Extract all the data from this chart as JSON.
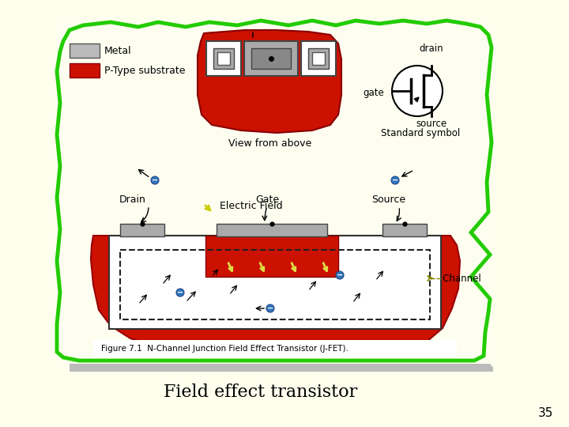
{
  "title": "Field effect transistor",
  "slide_number": "35",
  "bg_color": "#FFFFEE",
  "panel_bg": "#FFFEF0",
  "green_color": "#22CC00",
  "red_color": "#CC1100",
  "gray_color": "#AAAAAA",
  "dark_gray": "#555555",
  "white": "#FFFFFF",
  "figure_caption": "Figure 7.1  N-Channel Junction Field Effect Transistor (J-FET).",
  "label_drain": "Drain",
  "label_gate": "Gate",
  "label_source": "Source",
  "label_channel": "- Channel",
  "label_efield": "Electric Field",
  "label_metal": "Metal",
  "label_ptype": "P-Type substrate",
  "label_view": "View from above",
  "label_sym_drain": "drain",
  "label_sym_gate": "gate",
  "label_sym_source": "source",
  "label_sym": "Standard symbol"
}
